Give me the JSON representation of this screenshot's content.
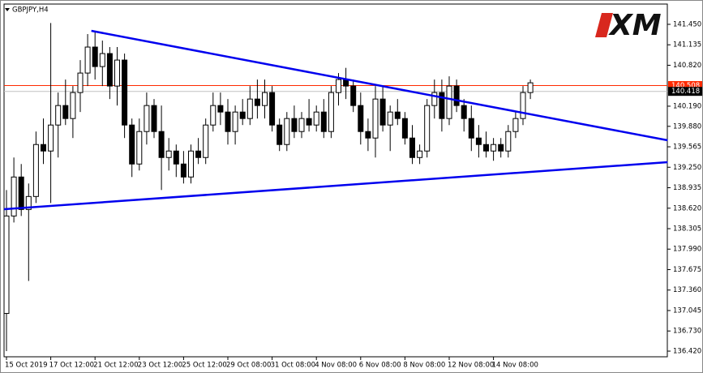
{
  "chart_data": {
    "type": "candlestick",
    "title": "GBPJPY,H4",
    "watermark": "XM",
    "categories": [
      "15 Oct 2019",
      null,
      null,
      null,
      null,
      null,
      "17 Oct 12:00",
      null,
      null,
      null,
      null,
      null,
      "21 Oct 12:00",
      null,
      null,
      null,
      null,
      null,
      "23 Oct 12:00",
      null,
      null,
      null,
      null,
      null,
      "25 Oct 12:00",
      null,
      null,
      null,
      null,
      null,
      "29 Oct 08:00",
      null,
      null,
      null,
      null,
      null,
      "31 Oct 08:00",
      null,
      null,
      null,
      null,
      null,
      "4 Nov 08:00",
      null,
      null,
      null,
      null,
      null,
      "6 Nov 08:00",
      null,
      null,
      null,
      null,
      null,
      "8 Nov 08:00",
      null,
      null,
      null,
      null,
      null,
      "12 Nov 08:00",
      null,
      null,
      null,
      null,
      null,
      "14 Nov 08:00",
      null,
      null,
      null,
      null,
      null
    ],
    "open": [
      137.0,
      138.5,
      139.1,
      138.6,
      138.8,
      139.6,
      139.5,
      139.9,
      140.2,
      140.0,
      140.4,
      140.7,
      141.1,
      140.8,
      141.0,
      140.5,
      140.9,
      139.9,
      139.3,
      139.8,
      140.2,
      139.8,
      139.4,
      139.5,
      139.3,
      139.1,
      139.5,
      139.4,
      139.9,
      140.2,
      140.1,
      139.8,
      140.1,
      140.0,
      140.3,
      140.2,
      140.4,
      139.9,
      139.6,
      140.0,
      139.8,
      140.0,
      139.9,
      140.1,
      139.8,
      140.4,
      140.6,
      140.5,
      140.2,
      139.8,
      139.7,
      140.3,
      139.9,
      140.1,
      140.0,
      139.7,
      139.4,
      139.5,
      140.2,
      140.4,
      140.0,
      140.5,
      140.2,
      140.0,
      139.7,
      139.6,
      139.5,
      139.6,
      139.5,
      139.8,
      140.0,
      140.4
    ],
    "high": [
      138.9,
      139.4,
      139.3,
      139.0,
      139.8,
      140.0,
      141.47,
      140.4,
      140.6,
      140.5,
      140.9,
      141.3,
      141.35,
      141.2,
      141.1,
      141.1,
      141.0,
      140.0,
      140.0,
      140.4,
      140.3,
      140.2,
      139.7,
      139.6,
      139.5,
      139.6,
      139.7,
      140.0,
      140.4,
      140.4,
      140.3,
      140.2,
      140.3,
      140.5,
      140.6,
      140.6,
      140.5,
      140.0,
      140.1,
      140.2,
      140.1,
      140.3,
      140.2,
      140.3,
      140.5,
      140.7,
      140.78,
      140.6,
      140.4,
      140.0,
      140.5,
      140.5,
      140.2,
      140.3,
      140.1,
      139.9,
      139.6,
      140.3,
      140.6,
      140.6,
      140.65,
      140.6,
      140.3,
      140.2,
      139.9,
      139.8,
      139.7,
      139.7,
      139.9,
      140.1,
      140.5,
      140.6
    ],
    "low": [
      136.42,
      138.4,
      138.5,
      137.5,
      138.7,
      139.3,
      138.7,
      139.4,
      139.9,
      139.7,
      140.1,
      140.5,
      140.6,
      140.5,
      140.3,
      140.2,
      139.7,
      139.1,
      139.2,
      139.6,
      139.7,
      138.9,
      139.2,
      139.1,
      139.0,
      139.0,
      139.3,
      139.3,
      139.8,
      139.9,
      139.6,
      139.6,
      139.9,
      139.9,
      140.0,
      140.0,
      139.8,
      139.5,
      139.5,
      139.7,
      139.7,
      139.8,
      139.8,
      139.7,
      139.7,
      140.2,
      140.3,
      140.1,
      139.6,
      139.5,
      139.4,
      139.8,
      139.5,
      139.9,
      139.6,
      139.3,
      139.3,
      139.4,
      140.0,
      139.8,
      139.9,
      140.1,
      139.8,
      139.5,
      139.4,
      139.4,
      139.35,
      139.4,
      139.4,
      139.7,
      139.9,
      140.3
    ],
    "close": [
      138.5,
      139.1,
      138.6,
      138.8,
      139.6,
      139.5,
      139.9,
      140.2,
      140.0,
      140.4,
      140.7,
      141.1,
      140.8,
      141.0,
      140.5,
      140.9,
      139.9,
      139.3,
      139.8,
      140.2,
      139.8,
      139.4,
      139.5,
      139.3,
      139.1,
      139.5,
      139.4,
      139.9,
      140.2,
      140.1,
      139.8,
      140.1,
      140.0,
      140.3,
      140.2,
      140.4,
      139.9,
      139.6,
      140.0,
      139.8,
      140.0,
      139.9,
      140.1,
      139.8,
      140.4,
      140.6,
      140.5,
      140.2,
      139.8,
      139.7,
      140.3,
      139.9,
      140.1,
      140.0,
      139.7,
      139.4,
      139.5,
      140.2,
      140.4,
      140.0,
      140.5,
      140.2,
      140.0,
      139.7,
      139.6,
      139.5,
      139.6,
      139.5,
      139.8,
      140.0,
      140.4,
      140.55
    ],
    "ylim": [
      136.333,
      141.762
    ],
    "yticks": [
      {
        "value": 141.45,
        "label": "141.450"
      },
      {
        "value": 141.135,
        "label": "141.135"
      },
      {
        "value": 140.82,
        "label": "140.820"
      },
      {
        "value": 140.19,
        "label": "140.190"
      },
      {
        "value": 139.88,
        "label": "139.880"
      },
      {
        "value": 139.565,
        "label": "139.565"
      },
      {
        "value": 139.25,
        "label": "139.250"
      },
      {
        "value": 138.935,
        "label": "138.935"
      },
      {
        "value": 138.62,
        "label": "138.620"
      },
      {
        "value": 138.305,
        "label": "138.305"
      },
      {
        "value": 137.99,
        "label": "137.990"
      },
      {
        "value": 137.675,
        "label": "137.675"
      },
      {
        "value": 137.36,
        "label": "137.360"
      },
      {
        "value": 137.045,
        "label": "137.045"
      },
      {
        "value": 136.73,
        "label": "136.730"
      },
      {
        "value": 136.42,
        "label": "136.420"
      }
    ],
    "ask_line": {
      "value": 140.508,
      "label": "140.508",
      "color": "#ff2a00"
    },
    "bid_line": {
      "value": 140.418,
      "label": "140.418",
      "color": "#c0c0c0"
    },
    "trendlines": [
      {
        "color": "#0000ee",
        "x": [
          11.5,
          89.6
        ],
        "y": [
          141.35,
          139.665
        ]
      },
      {
        "color": "#0000ee",
        "x": [
          -0.33,
          89.6
        ],
        "y": [
          138.604,
          139.328
        ]
      }
    ]
  }
}
